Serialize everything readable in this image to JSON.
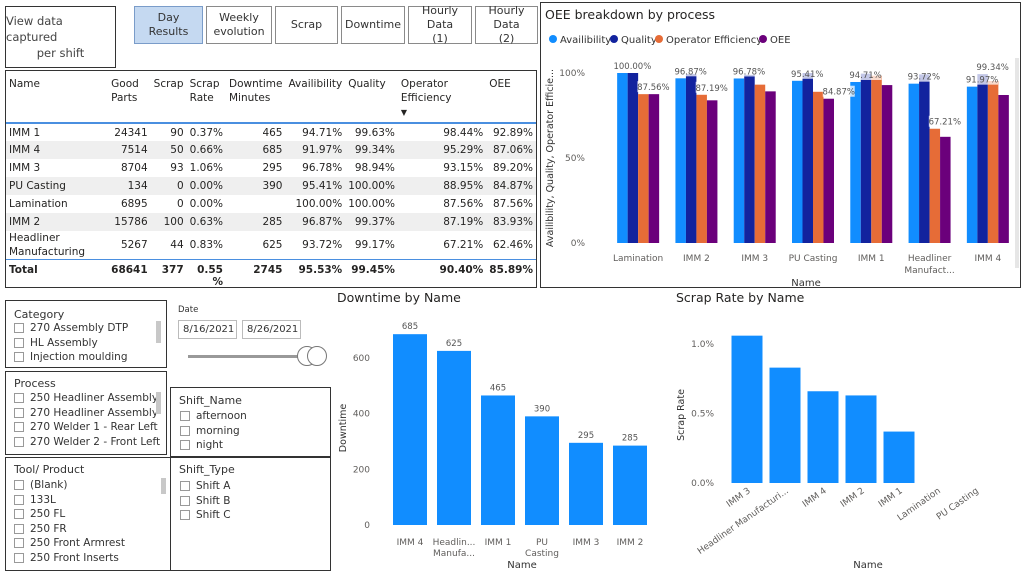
{
  "view_button": {
    "line1": "View data captured",
    "line2": "per shift"
  },
  "nav": {
    "day_results": "Day Results",
    "weekly_1": "Weekly",
    "weekly_2": "evolution",
    "scrap": "Scrap",
    "downtime": "Downtime",
    "hourly1_1": "Hourly Data",
    "hourly1_2": "(1)",
    "hourly2_1": "Hourly Data",
    "hourly2_2": "(2)"
  },
  "table": {
    "headers": {
      "name": "Name",
      "good1": "Good",
      "good2": "Parts",
      "scrap": "Scrap",
      "rate1": "Scrap",
      "rate2": "Rate",
      "down1": "Downtime",
      "down2": "Minutes",
      "avail": "Availibility",
      "quality": "Quality",
      "opeff": "Operator Efficiency",
      "oee": "OEE",
      "sort_indicator": "▼"
    },
    "rows": [
      {
        "name": "IMM 1",
        "good": "24341",
        "scrap": "90",
        "rate": "0.37%",
        "down": "465",
        "avail": "94.71%",
        "quality": "99.63%",
        "opeff": "98.44%",
        "oee": "92.89%"
      },
      {
        "name": "IMM 4",
        "good": "7514",
        "scrap": "50",
        "rate": "0.66%",
        "down": "685",
        "avail": "91.97%",
        "quality": "99.34%",
        "opeff": "95.29%",
        "oee": "87.06%"
      },
      {
        "name": "IMM 3",
        "good": "8704",
        "scrap": "93",
        "rate": "1.06%",
        "down": "295",
        "avail": "96.78%",
        "quality": "98.94%",
        "opeff": "93.15%",
        "oee": "89.20%"
      },
      {
        "name": "PU Casting",
        "good": "134",
        "scrap": "0",
        "rate": "0.00%",
        "down": "390",
        "avail": "95.41%",
        "quality": "100.00%",
        "opeff": "88.95%",
        "oee": "84.87%"
      },
      {
        "name": "Lamination",
        "good": "6895",
        "scrap": "0",
        "rate": "0.00%",
        "down": "",
        "avail": "100.00%",
        "quality": "100.00%",
        "opeff": "87.56%",
        "oee": "87.56%"
      },
      {
        "name": "IMM 2",
        "good": "15786",
        "scrap": "100",
        "rate": "0.63%",
        "down": "285",
        "avail": "96.87%",
        "quality": "99.37%",
        "opeff": "87.19%",
        "oee": "83.93%"
      },
      {
        "name": "Headliner",
        "name2": "Manufacturing",
        "good": "5267",
        "scrap": "44",
        "rate": "0.83%",
        "down": "625",
        "avail": "93.72%",
        "quality": "99.17%",
        "opeff": "67.21%",
        "oee": "62.46%"
      }
    ],
    "total": {
      "name": "Total",
      "good": "68641",
      "scrap": "377",
      "rate": "0.55",
      "rate2": "%",
      "down": "2745",
      "avail": "95.53%",
      "quality": "99.45%",
      "opeff": "90.40%",
      "oee": "85.89%"
    }
  },
  "oee_chart": {
    "title": "OEE breakdown by process",
    "legend": [
      "Availibility",
      "Quality",
      "Operator Efficiency",
      "OEE"
    ],
    "colors": [
      "#118DFF",
      "#12239E",
      "#E66C37",
      "#6B007B"
    ],
    "ylabel": "Availibility, Quality, Operator Efficie...",
    "xlabel": "Name",
    "yticks": [
      "0%",
      "50%",
      "100%"
    ],
    "categories": [
      "Lamination",
      "IMM 2",
      "IMM 3",
      "PU Casting",
      "IMM 1",
      "Headliner",
      "IMM 4"
    ],
    "categories_line2": [
      "",
      "",
      "",
      "",
      "",
      "Manufact...",
      ""
    ],
    "data_labels": [
      {
        "text": "100.00%",
        "ci": 0,
        "si": 0
      },
      {
        "text": "87.56%",
        "ci": 0,
        "si": 2
      },
      {
        "text": "96.87%",
        "ci": 1,
        "si": 0
      },
      {
        "text": "87.19%",
        "ci": 1,
        "si": 2
      },
      {
        "text": "96.78%",
        "ci": 2,
        "si": 0
      },
      {
        "text": "95.41%",
        "ci": 3,
        "si": 0
      },
      {
        "text": "84.87%",
        "ci": 3,
        "si": 3
      },
      {
        "text": "94.71%",
        "ci": 4,
        "si": 0
      },
      {
        "text": "93.72%",
        "ci": 5,
        "si": 0
      },
      {
        "text": "67.21%",
        "ci": 5,
        "si": 2
      },
      {
        "text": "99.34%",
        "ci": 6,
        "si": 1
      },
      {
        "text": "91.97%",
        "ci": 6,
        "si": 0
      }
    ]
  },
  "chart_data": [
    {
      "type": "bar",
      "title": "OEE breakdown by process",
      "xlabel": "Name",
      "ylabel": "Availibility, Quality, Operator Efficie...",
      "ylim": [
        0,
        100
      ],
      "categories": [
        "Lamination",
        "IMM 2",
        "IMM 3",
        "PU Casting",
        "IMM 1",
        "Headliner Manufact...",
        "IMM 4"
      ],
      "series": [
        {
          "name": "Availibility",
          "values": [
            100.0,
            96.87,
            96.78,
            95.41,
            94.71,
            93.72,
            91.97
          ]
        },
        {
          "name": "Quality",
          "values": [
            100.0,
            99.37,
            98.94,
            100.0,
            99.63,
            99.17,
            99.34
          ]
        },
        {
          "name": "Operator Efficiency",
          "values": [
            87.56,
            87.19,
            93.15,
            88.95,
            98.44,
            67.21,
            95.29
          ]
        },
        {
          "name": "OEE",
          "values": [
            87.56,
            83.93,
            89.2,
            84.87,
            92.89,
            62.46,
            87.06
          ]
        }
      ],
      "legend": "top-left",
      "grid": false
    },
    {
      "type": "bar",
      "title": "Downtime by Name",
      "xlabel": "Name",
      "ylabel": "Downtime",
      "ylim": [
        0,
        700
      ],
      "yticks": [
        "0",
        "200",
        "400",
        "600"
      ],
      "categories": [
        "IMM 4",
        "Headlin... Manufa...",
        "IMM 1",
        "PU Casting",
        "IMM 3",
        "IMM 2"
      ],
      "categories_line1": [
        "IMM 4",
        "Headlin...",
        "IMM 1",
        "PU",
        "IMM 3",
        "IMM 2"
      ],
      "categories_line2": [
        "",
        "Manufa...",
        "",
        "Casting",
        "",
        ""
      ],
      "values": [
        685,
        625,
        465,
        390,
        295,
        285
      ],
      "labels": [
        "685",
        "625",
        "465",
        "390",
        "295",
        "285"
      ],
      "color": "#118DFF",
      "grid": false
    },
    {
      "type": "bar",
      "title": "Scrap Rate by Name",
      "xlabel": "Name",
      "ylabel": "Scrap Rate",
      "ylim": [
        0,
        1.2
      ],
      "yticks": [
        "0.0%",
        "0.5%",
        "1.0%"
      ],
      "categories": [
        "IMM 3",
        "Headliner Manufacturi...",
        "IMM 4",
        "IMM 2",
        "IMM 1",
        "Lamination",
        "PU Casting"
      ],
      "values": [
        1.06,
        0.83,
        0.66,
        0.63,
        0.37,
        0.0,
        0.0
      ],
      "color": "#118DFF",
      "grid": false
    }
  ],
  "category_slicer": {
    "title": "Category",
    "items": [
      "270 Assembly DTP",
      "HL Assembly",
      "Injection moulding"
    ]
  },
  "date_slicer": {
    "title": "Date",
    "start": "8/16/2021",
    "end": "8/26/2021"
  },
  "process_slicer": {
    "title": "Process",
    "items": [
      "250 Headliner Assembly",
      "270 Headliner Assembly",
      "270 Welder 1 - Rear Left",
      "270 Welder 2 - Front Left"
    ]
  },
  "shift_name_slicer": {
    "title": "Shift_Name",
    "items": [
      "afternoon",
      "morning",
      "night"
    ]
  },
  "tool_slicer": {
    "title": "Tool/ Product",
    "items": [
      "(Blank)",
      "133L",
      "250 FL",
      "250 FR",
      "250 Front Armrest",
      "250 Front Inserts"
    ]
  },
  "shift_type_slicer": {
    "title": "Shift_Type",
    "items": [
      "Shift A",
      "Shift B",
      "Shift C"
    ]
  }
}
